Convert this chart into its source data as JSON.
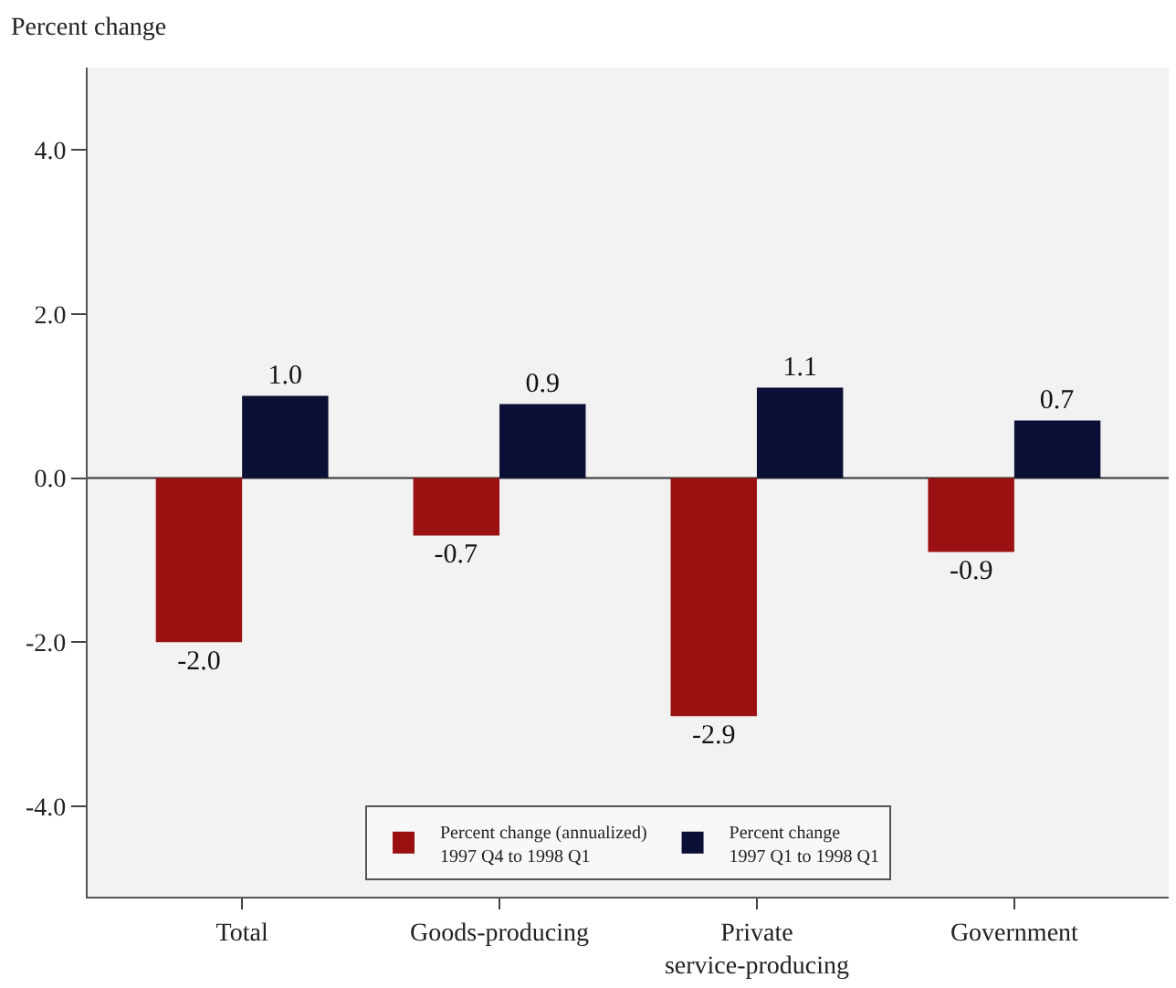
{
  "chart_data": {
    "type": "bar",
    "ylabel": "Percent change",
    "categories": [
      "Total",
      "Goods-producing",
      "Private\nservice-producing",
      "Government"
    ],
    "series": [
      {
        "name": "Percent change (annualized)\n1997 Q4 to 1998 Q1",
        "color": "#9b1010",
        "values": [
          -2.0,
          -0.7,
          -2.9,
          -0.9
        ],
        "value_labels": [
          "-2.0",
          "-0.7",
          "-2.9",
          "-0.9"
        ]
      },
      {
        "name": "Percent change\n1997 Q1 to 1998 Q1",
        "color": "#0c0f35",
        "values": [
          1.0,
          0.9,
          1.1,
          0.7
        ],
        "value_labels": [
          "1.0",
          "0.9",
          "1.1",
          "0.7"
        ]
      }
    ],
    "ylim": [
      -5.1,
      5.0
    ],
    "yticks": [
      {
        "value": 4,
        "label": "4.0"
      },
      {
        "value": 2,
        "label": "2.0"
      },
      {
        "value": 0,
        "label": "0.0"
      },
      {
        "value": -2,
        "label": "-2.0"
      },
      {
        "value": -4,
        "label": "-4.0"
      }
    ],
    "grid": false,
    "legend": "bottom",
    "ref_lines": [
      {
        "axis": "y",
        "value": 0,
        "color": "#333333"
      }
    ]
  }
}
